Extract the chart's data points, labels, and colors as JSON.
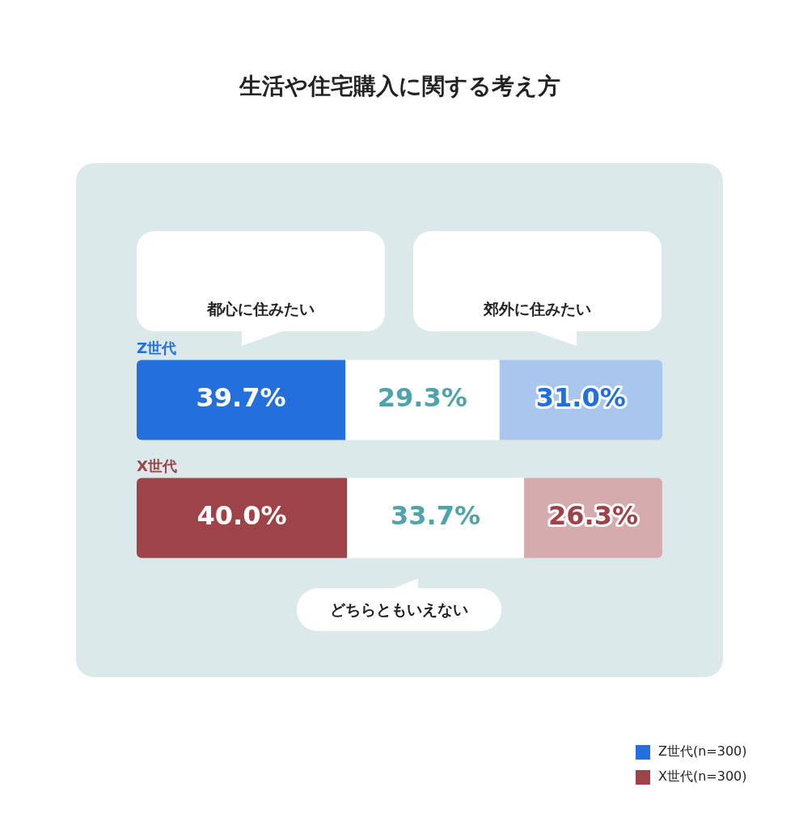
{
  "chart_data": {
    "type": "bar",
    "orientation": "horizontal",
    "stacked": true,
    "title": "生活や住宅購入に関する考え方",
    "categories": [
      "Z世代",
      "X世代"
    ],
    "series": [
      {
        "name": "都心に住みたい",
        "colors": [
          "#236fdc",
          "#9e4347"
        ],
        "values": [
          39.7,
          40.0
        ],
        "value_labels": [
          "39.7%",
          "40.0%"
        ]
      },
      {
        "name": "どちらともいえない",
        "color": "#ffffff",
        "values": [
          29.3,
          33.7
        ],
        "value_labels": [
          "29.3%",
          "33.7%"
        ]
      },
      {
        "name": "郊外に住みたい",
        "colors": [
          "#a9c6ef",
          "#d6abad"
        ],
        "values": [
          31.0,
          26.3
        ],
        "value_labels": [
          "31.0%",
          "26.3%"
        ]
      }
    ],
    "xlim": [
      0,
      100
    ],
    "tick_labels": false,
    "grid": false,
    "legend": "bottom right",
    "data_labels": true,
    "annotations": [
      "Z世代(n=300)",
      "X世代(n=300)"
    ]
  }
}
